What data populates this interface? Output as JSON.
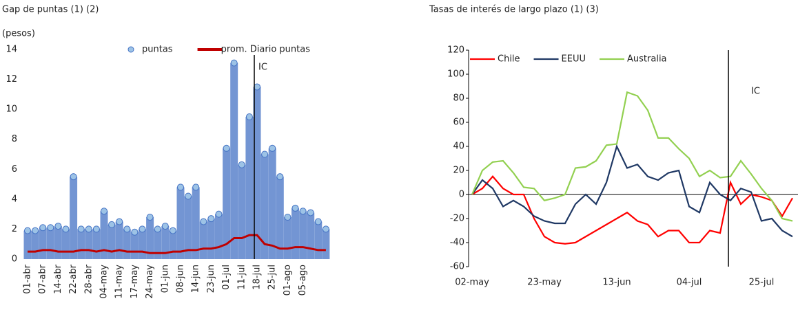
{
  "charts": [
    {
      "type": "scatter",
      "title": "Gap de puntas (1) (2)",
      "subtitle": "(pesos)",
      "categories": [
        "01-abr",
        null,
        "07-abr",
        null,
        "14-abr",
        null,
        "22-abr",
        null,
        "28-abr",
        null,
        "04-may",
        null,
        "11-may",
        null,
        "17-may",
        null,
        "24-may",
        null,
        "01-jun",
        null,
        "08-jun",
        null,
        "14-jun",
        null,
        "23-jun",
        null,
        "01-jul",
        null,
        "11-jul",
        null,
        "18-jul",
        null,
        "25-jul",
        null,
        "01-ago",
        null,
        "05-ago",
        null,
        null,
        null
      ],
      "series": [
        {
          "name": "puntas",
          "type": "scatter",
          "color": "#4472c4",
          "values": [
            1.9,
            1.9,
            2.1,
            2.1,
            2.2,
            2.0,
            5.5,
            2.0,
            2.0,
            2.0,
            3.2,
            2.3,
            2.5,
            2.0,
            1.8,
            2.0,
            2.8,
            2.0,
            2.2,
            1.9,
            4.8,
            4.2,
            4.8,
            2.5,
            2.7,
            3.0,
            7.4,
            13.1,
            6.3,
            9.5,
            11.5,
            7.0,
            7.4,
            5.5,
            2.8,
            3.4,
            3.2,
            3.1,
            2.5,
            2.0
          ]
        },
        {
          "name": "prom. Diario puntas",
          "type": "line",
          "color": "#c00000",
          "values": [
            0.5,
            0.5,
            0.6,
            0.6,
            0.5,
            0.5,
            0.5,
            0.6,
            0.6,
            0.5,
            0.6,
            0.5,
            0.6,
            0.5,
            0.5,
            0.5,
            0.4,
            0.4,
            0.4,
            0.5,
            0.5,
            0.6,
            0.6,
            0.7,
            0.7,
            0.8,
            1.0,
            1.4,
            1.4,
            1.6,
            1.6,
            1.0,
            0.9,
            0.7,
            0.7,
            0.8,
            0.8,
            0.7,
            0.6,
            0.6
          ]
        }
      ],
      "ylim": [
        0,
        14
      ],
      "yticks": [
        0,
        2,
        4,
        6,
        8,
        10,
        12,
        14
      ],
      "legend": "top",
      "annotations": [
        {
          "text": "IC",
          "x": 30
        }
      ]
    },
    {
      "type": "line",
      "title": "Tasas de interés de largo plazo (1) (3)",
      "categories": [
        "02-may",
        null,
        null,
        null,
        null,
        null,
        null,
        "23-may",
        null,
        null,
        null,
        null,
        null,
        null,
        "13-jun",
        null,
        null,
        null,
        null,
        null,
        null,
        "04-jul",
        null,
        null,
        null,
        null,
        null,
        null,
        "25-jul",
        null,
        null,
        null
      ],
      "series": [
        {
          "name": "Chile",
          "color": "#ff0000",
          "values": [
            0,
            5,
            15,
            5,
            0,
            0,
            -20,
            -35,
            -40,
            -41,
            -40,
            -35,
            -30,
            -25,
            -20,
            -15,
            -22,
            -25,
            -35,
            -30,
            -30,
            -40,
            -40,
            -30,
            -32,
            10,
            -8,
            0,
            -2,
            -5,
            -18,
            -3
          ]
        },
        {
          "name": "EEUU",
          "color": "#1f3864",
          "values": [
            0,
            12,
            5,
            -10,
            -5,
            -10,
            -18,
            -22,
            -24,
            -24,
            -8,
            0,
            -8,
            10,
            40,
            22,
            25,
            15,
            12,
            18,
            20,
            -10,
            -15,
            10,
            0,
            -5,
            5,
            2,
            -22,
            -20,
            -30,
            -35
          ]
        },
        {
          "name": "Australia",
          "color": "#92d050",
          "values": [
            0,
            20,
            27,
            28,
            18,
            6,
            5,
            -5,
            -3,
            0,
            22,
            23,
            28,
            41,
            42,
            85,
            82,
            70,
            47,
            47,
            38,
            30,
            15,
            20,
            14,
            15,
            28,
            17,
            5,
            -5,
            -20,
            -22
          ]
        }
      ],
      "ylim": [
        -60,
        120
      ],
      "yticks": [
        -60,
        -40,
        -20,
        0,
        20,
        40,
        60,
        80,
        100,
        120
      ],
      "legend": "top",
      "annotations": [
        {
          "text": "IC",
          "x": 25
        }
      ]
    }
  ]
}
